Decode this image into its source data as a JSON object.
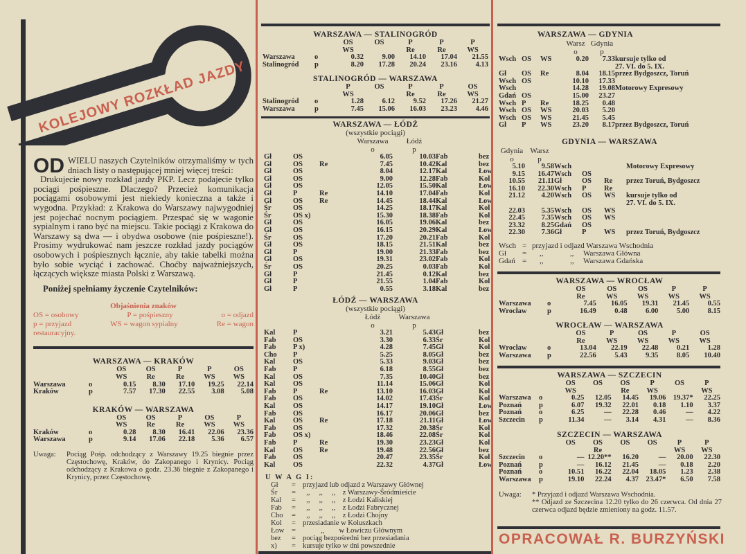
{
  "logo": {
    "title": "KOLEJOWY ROZKŁAD JAZDY"
  },
  "intro": {
    "dropcap": "OD",
    "lead": "WIELU naszych Czytelników otrzymaliśmy w tych dniach listy o następującej mniej więcej treści:",
    "letter": "Drukujecie nowy rozkład jazdy PKP. Lecz podajecie tylko pociągi pośpieszne. Dlaczego? Przecież komunikacja pociągami osobowymi jest niekiedy konieczna a także i wygodna. Przykład: z Krakowa do Warszawy najwygodniej jest pojechać nocnym pociągiem. Przespać się w wagonie sypialnym i rano być na miejscu. Takie pociągi z Krakowa do Warszawy są dwa — i obydwa osobowe (nie pośpieszne!). Prosimy wydrukować nam jeszcze rozkład jazdy pociągów osobowych i pośpiesznych łącznie, aby takie tabelki można było sobie wyciąć i zachować. Choćby najważniejszych, łączących większe miasta Polski z Warszawą.",
    "closing": "Poniżej spełniamy życzenie Czytelników:"
  },
  "legend": {
    "title": "Objaśnienia znaków",
    "line1": [
      "OS = osobowy",
      "P = pośpieszny",
      "o = odjazd"
    ],
    "line2": [
      "p = przyjazd",
      "WS = wagon sypialny",
      "Re = wagon"
    ],
    "line3": "restauracyjny."
  },
  "colors": {
    "accent_red": "#c8604f",
    "ink": "#2b2a2c",
    "paper": "#e4dcc3"
  },
  "warszawa_krakow": {
    "title": "WARSZAWA — KRAKÓW",
    "types": [
      [
        "OS",
        "OS",
        "P",
        "P",
        "OS"
      ],
      [
        "WS",
        "Re",
        "Re",
        "WS",
        "WS"
      ]
    ],
    "rows": [
      [
        "Warszawa",
        "o",
        "0.15",
        "8.30",
        "17.10",
        "19.25",
        "22.14"
      ],
      [
        "Kraków",
        "p",
        "7.57",
        "17.30",
        "22.55",
        "3.08",
        "5.08"
      ]
    ]
  },
  "krakow_warszawa": {
    "title": "KRAKÓW — WARSZAWA",
    "types": [
      [
        "OS",
        "OS",
        "P",
        "OS",
        "P"
      ],
      [
        "WS",
        "Re",
        "Re",
        "WS",
        "WS"
      ]
    ],
    "rows": [
      [
        "Kraków",
        "o",
        "0.28",
        "8.30",
        "16.41",
        "22.06",
        "23.36"
      ],
      [
        "Warszawa",
        "p",
        "9.14",
        "17.06",
        "22.18",
        "5.36",
        "6.57"
      ]
    ]
  },
  "krakow_note": {
    "label": "Uwaga:",
    "text": "Pociąg Pośp. odchodzący z Warszawy 19.25 biegnie przez Częstochowę, Kraków, do Zakopanego i Krynicy. Pociąg odchodzący z Krakowa o godz. 23.36 biegnie z Zakopanego i Krynicy, przez Częstochowę."
  },
  "warszawa_stalinogrod": {
    "title": "WARSZAWA — STALINOGRÓD",
    "types": [
      [
        "OS",
        "OS",
        "P",
        "P",
        "P"
      ],
      [
        "WS",
        "",
        "Re",
        "Re",
        "WS"
      ]
    ],
    "rows": [
      [
        "Warszawa",
        "o",
        "0.32",
        "9.00",
        "14.10",
        "17.04",
        "21.55"
      ],
      [
        "Stalinogród",
        "p",
        "8.20",
        "17.28",
        "20.24",
        "23.16",
        "4.13"
      ]
    ]
  },
  "stalinogrod_warszawa": {
    "title": "STALINOGRÓD — WARSZAWA",
    "types": [
      [
        "P",
        "OS",
        "P",
        "P",
        "OS"
      ],
      [
        "WS",
        "",
        "Re",
        "Re",
        "WS"
      ]
    ],
    "rows": [
      [
        "Stalinogród",
        "o",
        "1.28",
        "6.12",
        "9.52",
        "17.26",
        "21.27"
      ],
      [
        "Warszawa",
        "p",
        "7.45",
        "15.06",
        "16.03",
        "23.23",
        "4.46"
      ]
    ]
  },
  "warszawa_lodz": {
    "title": "WARSZAWA — ŁÓDŹ",
    "sub": "(wszystkie pociągi)",
    "head": [
      "",
      "",
      "",
      "Warszawa",
      "Łódź",
      "",
      ""
    ],
    "marks": [
      "",
      "",
      "",
      "o",
      "p",
      "",
      ""
    ],
    "rows": [
      [
        "Gł",
        "OS",
        "",
        "6.05",
        "10.03",
        "Fab",
        "bez"
      ],
      [
        "Gł",
        "OS",
        "Re",
        "7.45",
        "10.42",
        "Kal",
        "bez"
      ],
      [
        "Gł",
        "OS",
        "",
        "8.04",
        "12.17",
        "Kal",
        "Łow"
      ],
      [
        "Gł",
        "OS",
        "",
        "9.00",
        "12.28",
        "Fab",
        "Kol"
      ],
      [
        "Gł",
        "OS",
        "",
        "12.05",
        "15.50",
        "Kal",
        "Łow"
      ],
      [
        "Gł",
        "P",
        "Re",
        "14.10",
        "17.04",
        "Fab",
        "Kol"
      ],
      [
        "Gł",
        "OS",
        "Re",
        "14.45",
        "18.44",
        "Kal",
        "Łow"
      ],
      [
        "Śr",
        "OS",
        "",
        "14.25",
        "18.17",
        "Kal",
        "Kol"
      ],
      [
        "Śr",
        "OS x)",
        "",
        "15.30",
        "18.38",
        "Fab",
        "Kol"
      ],
      [
        "Gł",
        "OS",
        "",
        "16.05",
        "19.06",
        "Kal",
        "bez"
      ],
      [
        "Gł",
        "OS",
        "",
        "16.15",
        "20.29",
        "Kal",
        "Łow"
      ],
      [
        "Śr",
        "OS",
        "",
        "17.20",
        "20.21",
        "Fab",
        "Kol"
      ],
      [
        "Gł",
        "OS",
        "",
        "18.15",
        "21.51",
        "Kal",
        "bez"
      ],
      [
        "Gł",
        "P",
        "",
        "19.00",
        "21.33",
        "Fab",
        "bez"
      ],
      [
        "Gł",
        "OS",
        "",
        "19.31",
        "23.02",
        "Fab",
        "Kol"
      ],
      [
        "Śr",
        "OS",
        "",
        "20.25",
        "0.03",
        "Fab",
        "Kol"
      ],
      [
        "Gł",
        "P",
        "",
        "21.45",
        "0.12",
        "Kal",
        "bez"
      ],
      [
        "Gł",
        "P",
        "",
        "21.55",
        "1.04",
        "Fab",
        "Kol"
      ],
      [
        "Gł",
        "P",
        "",
        "0.55",
        "3.18",
        "Kal",
        "bez"
      ]
    ]
  },
  "lodz_warszawa": {
    "title": "ŁÓDŹ — WARSZAWA",
    "sub": "(wszystkie pociągi)",
    "head": [
      "",
      "",
      "",
      "Łódź",
      "Warszawa",
      "",
      ""
    ],
    "marks": [
      "",
      "",
      "",
      "o",
      "p",
      "",
      ""
    ],
    "rows": [
      [
        "Kal",
        "P",
        "",
        "3.21",
        "5.43",
        "Gł",
        "bez"
      ],
      [
        "Fab",
        "OS",
        "",
        "3.30",
        "6.33",
        "Śr",
        "Kol"
      ],
      [
        "Fab",
        "P x)",
        "",
        "4.28",
        "7.45",
        "Gł",
        "Kol"
      ],
      [
        "Cho",
        "P",
        "",
        "5.25",
        "8.05",
        "Gł",
        "bez"
      ],
      [
        "Kal",
        "OS",
        "",
        "5.33",
        "9.03",
        "Gł",
        "bez"
      ],
      [
        "Fab",
        "P",
        "",
        "6.18",
        "8.55",
        "Gł",
        "bez"
      ],
      [
        "Kal",
        "OS",
        "",
        "7.35",
        "10.40",
        "Gł",
        "bez"
      ],
      [
        "Kal",
        "OS",
        "",
        "11.14",
        "15.06",
        "Gł",
        "Kol"
      ],
      [
        "Fab",
        "P",
        "Re",
        "13.10",
        "16.03",
        "Gł",
        "Kol"
      ],
      [
        "Fab",
        "OS",
        "",
        "14.02",
        "17.43",
        "Śr",
        "Kol"
      ],
      [
        "Kal",
        "OS",
        "",
        "14.17",
        "19.10",
        "Gł",
        "Łow"
      ],
      [
        "Fab",
        "OS",
        "",
        "16.17",
        "20.06",
        "Gł",
        "bez"
      ],
      [
        "Kal",
        "OS",
        "Re",
        "17.18",
        "21.11",
        "Gł",
        "Łow"
      ],
      [
        "Fab",
        "OS",
        "",
        "17.32",
        "20.38",
        "Śr",
        "Kol"
      ],
      [
        "Fab",
        "OS x)",
        "",
        "18.46",
        "22.08",
        "Śr",
        "Kol"
      ],
      [
        "Fab",
        "P",
        "Re",
        "19.30",
        "23.23",
        "Gł",
        "Kol"
      ],
      [
        "Kal",
        "OS",
        "Re",
        "19.48",
        "22.56",
        "Gł",
        "bez"
      ],
      [
        "Fab",
        "OS",
        "",
        "20.47",
        "23.35",
        "Śr",
        "Kol"
      ],
      [
        "Kal",
        "OS",
        "",
        "22.32",
        "4.37",
        "Gł",
        "Łow"
      ]
    ]
  },
  "lodz_notes": {
    "title": "U W A G I:",
    "rows": [
      [
        "Gł",
        "=",
        "przyjazd lub odjazd z Warszawy Głównej"
      ],
      [
        "Śr",
        "=",
        "  ,,     ,,     ,,    z Warszawy-Śródmieście"
      ],
      [
        "Kal",
        "=",
        "  ,,     ,,     ,,    z Łodzi Kaliskiej"
      ],
      [
        "Fab",
        "=",
        "  ,,     ,,     ,,    z Łodzi Fabrycznej"
      ],
      [
        "Cho",
        "=",
        "  ,,     ,,     ,,    z Łodzi Chojny"
      ],
      [
        "Kol",
        "=",
        "przesiadanie w Koluszkach"
      ],
      [
        "Łow",
        "=",
        "          ,,        w Łowiczu Głównym"
      ],
      [
        "bez",
        "=",
        "pociąg bezpośredni bez przesiadania"
      ],
      [
        "x)",
        "=",
        "kursuje tylko w dni powszednie"
      ]
    ]
  },
  "warszawa_gdynia": {
    "title": "WARSZAWA — GDYNIA",
    "head": [
      "",
      "",
      "",
      "Warsz",
      "Gdynia",
      ""
    ],
    "marks": [
      "",
      "",
      "",
      "o",
      "p",
      ""
    ],
    "rows": [
      [
        "Wsch",
        "OS",
        "WS",
        "0.20",
        "7.33",
        "kursuje tylko od"
      ],
      [
        "",
        "",
        "",
        "",
        "",
        "27. VI. do 5. IX."
      ],
      [
        "Gł",
        "OS",
        "Re",
        "8.04",
        "18.15",
        "przez Bydgoszcz, Toruń"
      ],
      [
        "Wsch",
        "OS",
        "",
        "10.10",
        "17.33",
        ""
      ],
      [
        "Wsch",
        "",
        "",
        "14.28",
        "19.08",
        "Motorowy Expresowy"
      ],
      [
        "Gdań",
        "OS",
        "",
        "15.00",
        "23.27",
        ""
      ],
      [
        "Wsch",
        "P",
        "Re",
        "18.25",
        "0.48",
        ""
      ],
      [
        "Wsch",
        "OS",
        "WS",
        "20.03",
        "5.20",
        ""
      ],
      [
        "Wsch",
        "OS",
        "WS",
        "21.45",
        "5.45",
        ""
      ],
      [
        "Gł",
        "P",
        "WS",
        "23.20",
        "8.17",
        "przez Bydgoszcz, Toruń"
      ]
    ]
  },
  "gdynia_warszawa": {
    "title": "GDYNIA — WARSZAWA",
    "head": [
      "Gdynia",
      "Warsz",
      "",
      "",
      "",
      ""
    ],
    "marks": [
      "o",
      "p",
      "",
      "",
      "",
      ""
    ],
    "rows": [
      [
        "5.10",
        "9.58",
        "Wsch",
        "",
        "",
        "Motorowy Expresowy"
      ],
      [
        "9.15",
        "16.47",
        "Wsch",
        "OS",
        "",
        ""
      ],
      [
        "10.55",
        "21.11",
        "Gł",
        "OS",
        "Re",
        "przez Toruń, Bydgoszcz"
      ],
      [
        "16.10",
        "22.30",
        "Wsch",
        "P",
        "Re",
        ""
      ],
      [
        "21.12",
        "4.20",
        "Wsch",
        "OS",
        "WS",
        "kursuje tylko od"
      ],
      [
        "",
        "",
        "",
        "",
        "",
        "27. VI. do 5. IX."
      ],
      [
        "22.03",
        "5.35",
        "Wsch",
        "OS",
        "WS",
        ""
      ],
      [
        "22.45",
        "7.35",
        "Wsch",
        "OS",
        "WS",
        ""
      ],
      [
        "23.32",
        "8.25",
        "Gdań",
        "OS",
        "",
        ""
      ],
      [
        "22.30",
        "7.36",
        "Gł",
        "P",
        "WS",
        "przez Toruń, Bydgoszcz"
      ]
    ]
  },
  "gdynia_notes": {
    "rows": [
      [
        "Wsch",
        "=",
        "przyjazd i odjazd Warszawa Wschodnia"
      ],
      [
        "Gł",
        "=",
        "    ,,              ,,     Warszawa Główna"
      ],
      [
        "Gdań",
        "=",
        "    ,,              ,,     Warszawa Gdańska"
      ]
    ]
  },
  "warszawa_wroclaw": {
    "title": "WARSZAWA — WROCŁAW",
    "types": [
      [
        "OS",
        "OS",
        "OS",
        "P",
        "P"
      ],
      [
        "Re",
        "WS",
        "WS",
        "WS",
        "WS"
      ]
    ],
    "rows": [
      [
        "Warszawa",
        "o",
        "7.45",
        "16.05",
        "19.31",
        "21.45",
        "0.55"
      ],
      [
        "Wrocław",
        "p",
        "16.49",
        "0.48",
        "6.00",
        "5.00",
        "8.15"
      ]
    ]
  },
  "wroclaw_warszawa": {
    "title": "WROCŁAW — WARSZAWA",
    "types": [
      [
        "OS",
        "P",
        "OS",
        "P",
        "OS"
      ],
      [
        "Re",
        "WS",
        "WS",
        "WS",
        "WS"
      ]
    ],
    "rows": [
      [
        "Wrocław",
        "o",
        "13.04",
        "22.19",
        "22.48",
        "0.21",
        "1.28"
      ],
      [
        "Warszawa",
        "p",
        "22.56",
        "5.43",
        "9.35",
        "8.05",
        "10.40"
      ]
    ]
  },
  "warszawa_szczecin": {
    "title": "WARSZAWA — SZCZECIN",
    "types": [
      [
        "OS",
        "OS",
        "OS",
        "P",
        "OS",
        "P"
      ],
      [
        "WS",
        "",
        "Re",
        "WS",
        "",
        "WS"
      ]
    ],
    "rows": [
      [
        "Warszawa",
        "o",
        "0.25",
        "12.05",
        "14.45",
        "19.06",
        "19.37*",
        "22.25"
      ],
      [
        "Poznań",
        "p",
        "6.07",
        "19.32",
        "22.01",
        "0.18",
        "1.10",
        "3.37"
      ],
      [
        "Poznań",
        "o",
        "6.25",
        "—",
        "22.28",
        "0.46",
        "—",
        "4.22"
      ],
      [
        "Szczecin",
        "p",
        "11.34",
        "—",
        "3.14",
        "4.31",
        "—",
        "8.36"
      ]
    ]
  },
  "szczecin_warszawa": {
    "title": "SZCZECIN — WARSZAWA",
    "types": [
      [
        "OS",
        "OS",
        "OS",
        "OS",
        "P",
        "P"
      ],
      [
        "",
        "Re",
        "",
        "",
        "WS",
        "WS"
      ]
    ],
    "rows": [
      [
        "Szczecin",
        "o",
        "—",
        "12.20**",
        "16.20",
        "—",
        "20.00",
        "22.30"
      ],
      [
        "Poznań",
        "p",
        "—",
        "16.12",
        "21.45",
        "—",
        "0.18",
        "2.20"
      ],
      [
        "Poznań",
        "o",
        "10.51",
        "16.22",
        "22.04",
        "18.05",
        "1.23",
        "2.38"
      ],
      [
        "Warszawa",
        "p",
        "19.10",
        "22.24",
        "4.37",
        "23.47*",
        "6.50",
        "7.58"
      ]
    ]
  },
  "szczecin_note": {
    "label": "Uwaga:",
    "lines": [
      "* Przyjazd i odjazd Warszawa Wschodnia.",
      "** Odjazd ze Szczecina 12.20 tylko do 26 czerwca. Od dnia 27 czerwca odjazd będzie zmieniony na godz. 11.57."
    ]
  },
  "signature": "OPRACOWAŁ R. BURZYŃSKI"
}
